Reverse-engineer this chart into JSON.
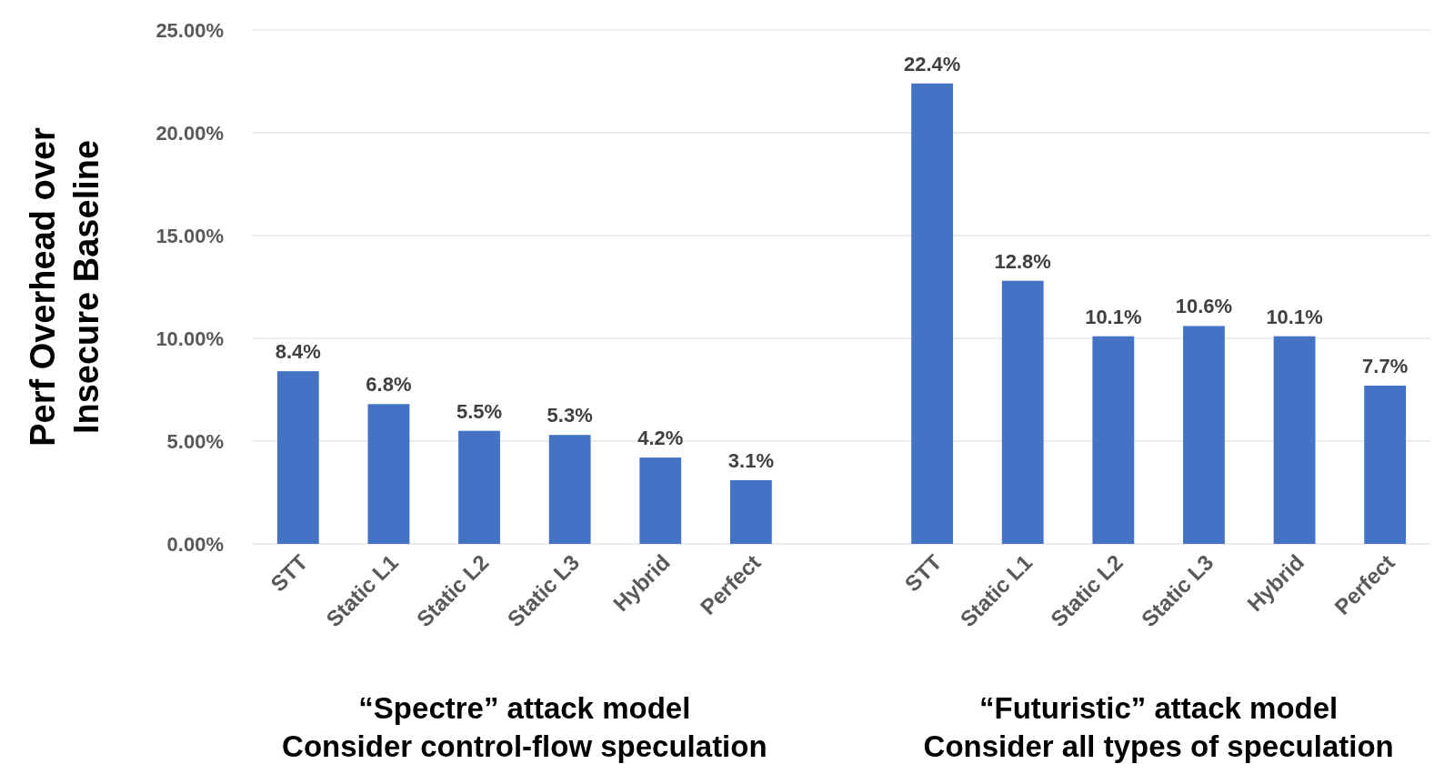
{
  "chart_data": {
    "type": "bar",
    "ylabel": "Perf Overhead over\nInsecure Baseline",
    "categories": [
      "STT",
      "Static L1",
      "Static L2",
      "Static L3",
      "Hybrid",
      "Perfect",
      null,
      "STT",
      "Static L1",
      "Static L2",
      "Static L3",
      "Hybrid",
      "Perfect"
    ],
    "values": [
      8.4,
      6.8,
      5.5,
      5.3,
      4.2,
      3.1,
      null,
      22.4,
      12.8,
      10.1,
      10.6,
      10.1,
      7.7
    ],
    "value_labels": [
      "8.4%",
      "6.8%",
      "5.5%",
      "5.3%",
      "4.2%",
      "3.1%",
      null,
      "22.4%",
      "12.8%",
      "10.1%",
      "10.6%",
      "10.1%",
      "7.7%"
    ],
    "color": "#4472c4",
    "ylim": [
      0,
      25
    ],
    "yticks": [
      {
        "value": 0,
        "label": "0.00%"
      },
      {
        "value": 5,
        "label": "5.00%"
      },
      {
        "value": 10,
        "label": "10.00%"
      },
      {
        "value": 15,
        "label": "15.00%"
      },
      {
        "value": 20,
        "label": "20.00%"
      },
      {
        "value": 25,
        "label": "25.00%"
      }
    ],
    "grid": "y",
    "annotations": [
      "“Spectre” attack model\nConsider control-flow speculation",
      "“Futuristic” attack model\nConsider all types of speculation"
    ]
  }
}
